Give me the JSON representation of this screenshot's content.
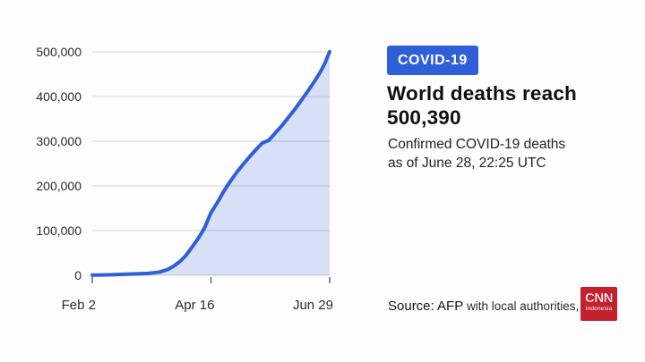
{
  "page": {
    "background_color": "#fefefe"
  },
  "info_panel": {
    "badge": {
      "label": "COVID-19",
      "bg_color": "#2e5fd9",
      "text_color": "#ffffff"
    },
    "title_line1": "World deaths reach",
    "title_line2": "500,390",
    "subtitle_line1": "Confirmed COVID-19 deaths",
    "subtitle_line2": "as of June 28, 22:25 UTC"
  },
  "footer": {
    "source_prefix": "Source: AFP",
    "source_rest": " with local authorities, J"
  },
  "logo": {
    "brand": "CNN",
    "region": "Indonesia",
    "bg_color": "#c4212e",
    "text_color": "#ffffff"
  },
  "chart_data": {
    "type": "area",
    "title": "",
    "xlabel": "",
    "ylabel": "",
    "grid": true,
    "line_color": "#2e5fd9",
    "fill_color": "rgba(46,95,217,0.19)",
    "gridline_color": "#dcdcdc",
    "tick_color": "#666666",
    "x_axis": {
      "tick_labels": [
        "Feb 2",
        "Apr 16",
        "Jun 29"
      ],
      "tick_days": [
        0,
        74,
        148
      ],
      "range_days": [
        0,
        148
      ]
    },
    "y_axis": {
      "ticks": [
        0,
        100000,
        200000,
        300000,
        400000,
        500000
      ],
      "tick_labels": [
        "0",
        "100,000",
        "200,000",
        "300,000",
        "400,000",
        "500,000"
      ],
      "range": [
        0,
        500000
      ]
    },
    "series": [
      {
        "name": "Confirmed COVID-19 deaths worldwide",
        "points": [
          [
            0,
            400
          ],
          [
            7,
            800
          ],
          [
            14,
            1600
          ],
          [
            21,
            2500
          ],
          [
            28,
            3100
          ],
          [
            35,
            4200
          ],
          [
            42,
            7500
          ],
          [
            47,
            13000
          ],
          [
            51,
            21000
          ],
          [
            55,
            32000
          ],
          [
            58,
            43000
          ],
          [
            61,
            57000
          ],
          [
            64,
            72000
          ],
          [
            67,
            88000
          ],
          [
            70,
            106000
          ],
          [
            74,
            140000
          ],
          [
            78,
            163000
          ],
          [
            82,
            188000
          ],
          [
            86,
            210000
          ],
          [
            90,
            230000
          ],
          [
            94,
            248000
          ],
          [
            98,
            265000
          ],
          [
            102,
            281000
          ],
          [
            106,
            296000
          ],
          [
            110,
            302000
          ],
          [
            114,
            318000
          ],
          [
            118,
            334000
          ],
          [
            122,
            352000
          ],
          [
            126,
            370000
          ],
          [
            130,
            390000
          ],
          [
            134,
            410000
          ],
          [
            138,
            431000
          ],
          [
            142,
            454000
          ],
          [
            145,
            474000
          ],
          [
            148,
            500390
          ]
        ]
      }
    ]
  }
}
